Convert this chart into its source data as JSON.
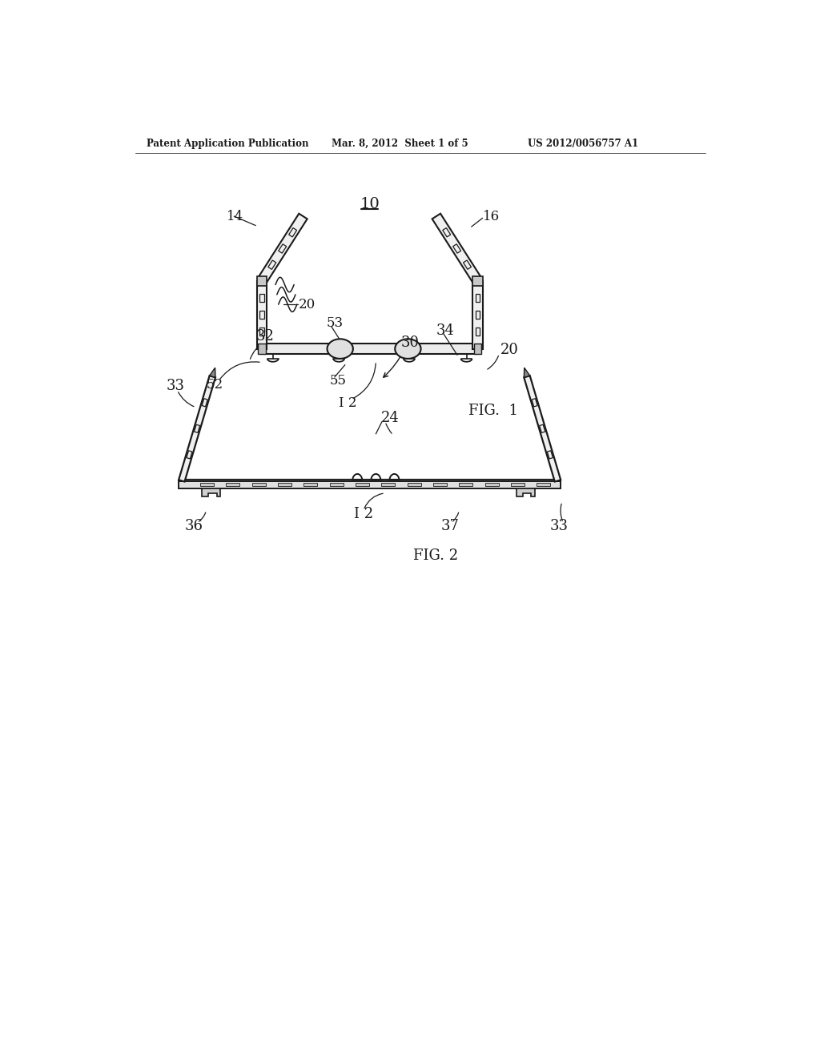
{
  "bg_color": "#ffffff",
  "line_color": "#1a1a1a",
  "header_left": "Patent Application Publication",
  "header_mid": "Mar. 8, 2012  Sheet 1 of 5",
  "header_right": "US 2012/0056757 A1",
  "fig1_label": "FIG.  1",
  "fig2_label": "FIG. 2",
  "label_10": "10",
  "label_14": "14",
  "label_16": "16",
  "label_20_fig1": "20",
  "label_52": "52",
  "label_53": "53",
  "label_55": "55",
  "label_12_fig1": "I 2",
  "label_30": "30",
  "label_32": "32",
  "label_33a": "33",
  "label_33b": "33",
  "label_34": "34",
  "label_20_fig2": "20",
  "label_24": "24",
  "label_12_fig2": "I 2",
  "label_36": "36",
  "label_37": "37"
}
